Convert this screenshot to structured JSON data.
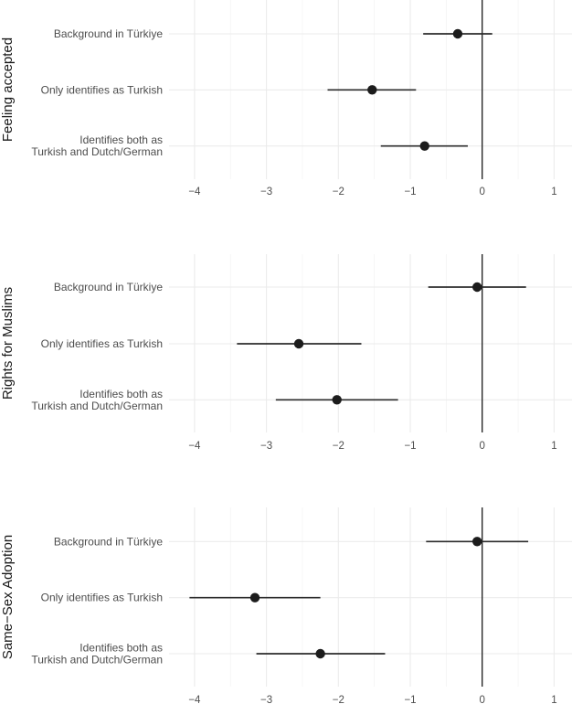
{
  "chart_data": {
    "type": "scatter",
    "subtype": "coefficient-plot-with-confidence-intervals",
    "title": "",
    "xlabel": "",
    "ylabel": "",
    "xlim": [
      -4.5,
      1.25
    ],
    "x_ticks": [
      -4,
      -3,
      -2,
      -1,
      0,
      1
    ],
    "x_tick_labels": [
      "−4",
      "−3",
      "−2",
      "−1",
      "0",
      "1"
    ],
    "reference_line_x": 0,
    "grid": true,
    "categories": [
      "Background in Türkiye",
      "Only identifies as Turkish",
      "Identifies both as\nTurkish and Dutch/German"
    ],
    "panels": [
      {
        "label": "Feeling accepted",
        "estimates": [
          -0.34,
          -1.53,
          -0.8
        ],
        "ci_low": [
          -0.82,
          -2.15,
          -1.41
        ],
        "ci_high": [
          0.14,
          -0.92,
          -0.2
        ]
      },
      {
        "label": "Rights for Muslims",
        "estimates": [
          -0.07,
          -2.55,
          -2.02
        ],
        "ci_low": [
          -0.75,
          -3.41,
          -2.87
        ],
        "ci_high": [
          0.61,
          -1.68,
          -1.17
        ]
      },
      {
        "label": "Same−Sex Adoption",
        "estimates": [
          -0.07,
          -3.16,
          -2.25
        ],
        "ci_low": [
          -0.78,
          -4.07,
          -3.14
        ],
        "ci_high": [
          0.64,
          -2.25,
          -1.35
        ]
      }
    ]
  }
}
